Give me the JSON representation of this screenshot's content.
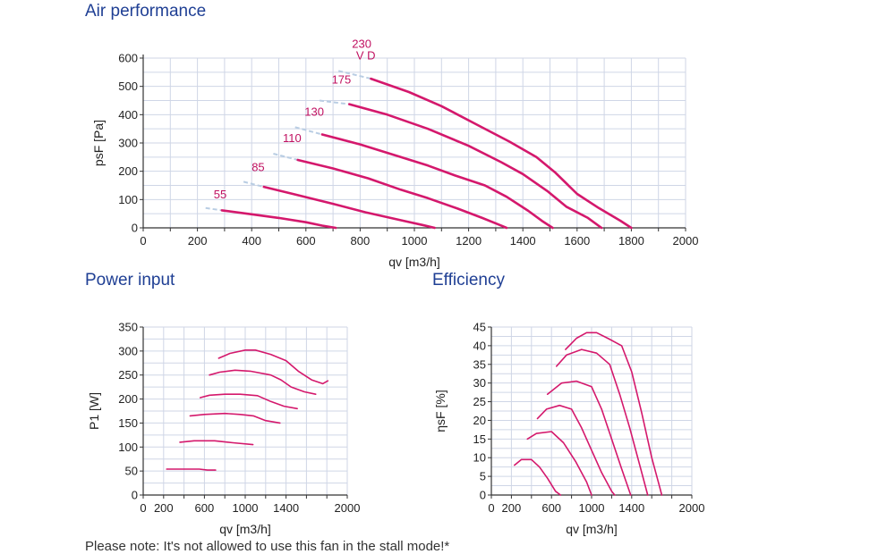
{
  "titles": {
    "air": "Air performance",
    "power": "Power input",
    "efficiency": "Efficiency"
  },
  "footnote": "Please note: It's not allowed to use this fan in the stall mode!*",
  "colors": {
    "curve": "#d4186c",
    "label": "#c01060",
    "title": "#1f3f94",
    "grid": "#cfd6e6",
    "axis": "#333333",
    "stall": "#b9cde3"
  },
  "chart_data": [
    {
      "id": "air",
      "type": "line",
      "xlabel": "qv [m3/h]",
      "ylabel": "psF [Pa]",
      "xlim": [
        0,
        2000
      ],
      "ylim": [
        0,
        600
      ],
      "xticks": [
        0,
        200,
        400,
        600,
        800,
        1000,
        1200,
        1400,
        1600,
        1800,
        2000
      ],
      "yticks": [
        0,
        100,
        200,
        300,
        400,
        500,
        600
      ],
      "xgrid_step": 100,
      "ygrid_step": 50,
      "stall_lines": [
        [
          [
            230,
            70
          ],
          [
            290,
            62
          ]
        ],
        [
          [
            370,
            163
          ],
          [
            445,
            145
          ]
        ],
        [
          [
            480,
            262
          ],
          [
            570,
            240
          ]
        ],
        [
          [
            560,
            356
          ],
          [
            660,
            330
          ]
        ],
        [
          [
            650,
            450
          ],
          [
            760,
            437
          ]
        ],
        [
          [
            720,
            555
          ],
          [
            840,
            527
          ]
        ]
      ],
      "curve_labels": [
        {
          "text": "55",
          "x": 260,
          "y": 105
        },
        {
          "text": "85",
          "x": 400,
          "y": 200
        },
        {
          "text": "110",
          "x": 515,
          "y": 303
        },
        {
          "text": "130",
          "x": 595,
          "y": 396
        },
        {
          "text": "175",
          "x": 695,
          "y": 510
        },
        {
          "text": "230",
          "x": 770,
          "y": 636
        },
        {
          "text": "V D",
          "x": 785,
          "y": 595
        }
      ],
      "series": [
        {
          "name": "55",
          "points": [
            [
              290,
              62
            ],
            [
              400,
              48
            ],
            [
              500,
              35
            ],
            [
              600,
              20
            ],
            [
              660,
              8
            ],
            [
              710,
              0
            ]
          ]
        },
        {
          "name": "85",
          "points": [
            [
              445,
              145
            ],
            [
              560,
              118
            ],
            [
              700,
              85
            ],
            [
              820,
              55
            ],
            [
              960,
              25
            ],
            [
              1030,
              10
            ],
            [
              1075,
              0
            ]
          ]
        },
        {
          "name": "110",
          "points": [
            [
              570,
              240
            ],
            [
              700,
              210
            ],
            [
              830,
              175
            ],
            [
              950,
              135
            ],
            [
              1050,
              105
            ],
            [
              1160,
              68
            ],
            [
              1250,
              35
            ],
            [
              1310,
              12
            ],
            [
              1340,
              0
            ]
          ]
        },
        {
          "name": "130",
          "points": [
            [
              660,
              330
            ],
            [
              800,
              295
            ],
            [
              950,
              250
            ],
            [
              1050,
              220
            ],
            [
              1150,
              185
            ],
            [
              1260,
              150
            ],
            [
              1340,
              110
            ],
            [
              1420,
              60
            ],
            [
              1470,
              25
            ],
            [
              1510,
              0
            ]
          ]
        },
        {
          "name": "175",
          "points": [
            [
              760,
              437
            ],
            [
              900,
              400
            ],
            [
              1050,
              350
            ],
            [
              1200,
              290
            ],
            [
              1320,
              232
            ],
            [
              1400,
              190
            ],
            [
              1490,
              130
            ],
            [
              1560,
              75
            ],
            [
              1640,
              35
            ],
            [
              1690,
              0
            ]
          ]
        },
        {
          "name": "230",
          "points": [
            [
              840,
              527
            ],
            [
              980,
              480
            ],
            [
              1100,
              430
            ],
            [
              1250,
              355
            ],
            [
              1350,
              305
            ],
            [
              1450,
              250
            ],
            [
              1520,
              195
            ],
            [
              1600,
              120
            ],
            [
              1680,
              70
            ],
            [
              1760,
              25
            ],
            [
              1800,
              0
            ]
          ]
        }
      ]
    },
    {
      "id": "power",
      "type": "line",
      "xlabel": "qv [m3/h]",
      "ylabel": "P1 [W]",
      "xlim": [
        0,
        2000
      ],
      "ylim": [
        0,
        350
      ],
      "xticks": [
        0,
        200,
        600,
        1000,
        1400,
        2000
      ],
      "yticks": [
        0,
        50,
        100,
        150,
        200,
        250,
        300,
        350
      ],
      "xgrid_step": 200,
      "ygrid_step": 25,
      "series": [
        {
          "name": "55",
          "points": [
            [
              230,
              54
            ],
            [
              400,
              54
            ],
            [
              550,
              54
            ],
            [
              630,
              52
            ],
            [
              710,
              52
            ]
          ]
        },
        {
          "name": "85",
          "points": [
            [
              360,
              110
            ],
            [
              500,
              113
            ],
            [
              700,
              113
            ],
            [
              880,
              109
            ],
            [
              1075,
              105
            ]
          ]
        },
        {
          "name": "110",
          "points": [
            [
              460,
              165
            ],
            [
              600,
              168
            ],
            [
              800,
              170
            ],
            [
              950,
              168
            ],
            [
              1080,
              165
            ],
            [
              1200,
              155
            ],
            [
              1340,
              150
            ]
          ]
        },
        {
          "name": "130",
          "points": [
            [
              560,
              203
            ],
            [
              650,
              208
            ],
            [
              800,
              210
            ],
            [
              950,
              210
            ],
            [
              1120,
              207
            ],
            [
              1250,
              195
            ],
            [
              1380,
              185
            ],
            [
              1510,
              180
            ]
          ]
        },
        {
          "name": "175",
          "points": [
            [
              650,
              250
            ],
            [
              750,
              256
            ],
            [
              900,
              260
            ],
            [
              1050,
              258
            ],
            [
              1250,
              250
            ],
            [
              1350,
              240
            ],
            [
              1450,
              225
            ],
            [
              1580,
              215
            ],
            [
              1690,
              210
            ]
          ]
        },
        {
          "name": "230",
          "points": [
            [
              740,
              285
            ],
            [
              850,
              295
            ],
            [
              1000,
              302
            ],
            [
              1100,
              302
            ],
            [
              1250,
              293
            ],
            [
              1400,
              280
            ],
            [
              1520,
              258
            ],
            [
              1650,
              240
            ],
            [
              1760,
              232
            ],
            [
              1810,
              238
            ]
          ]
        }
      ]
    },
    {
      "id": "efficiency",
      "type": "line",
      "xlabel": "qv [m3/h]",
      "ylabel": "ηsF [%]",
      "xlim": [
        0,
        2000
      ],
      "ylim": [
        0,
        45
      ],
      "xticks": [
        0,
        200,
        600,
        1000,
        1400,
        2000
      ],
      "yticks": [
        0,
        5,
        10,
        15,
        20,
        25,
        30,
        35,
        40,
        45
      ],
      "xgrid_step": 200,
      "ygrid_step": 2.5,
      "series": [
        {
          "name": "55",
          "points": [
            [
              230,
              8
            ],
            [
              300,
              9.5
            ],
            [
              400,
              9.5
            ],
            [
              480,
              7.5
            ],
            [
              560,
              4.5
            ],
            [
              640,
              1
            ],
            [
              690,
              0
            ]
          ]
        },
        {
          "name": "85",
          "points": [
            [
              360,
              15
            ],
            [
              450,
              16.5
            ],
            [
              600,
              17
            ],
            [
              720,
              14
            ],
            [
              840,
              9
            ],
            [
              950,
              3.5
            ],
            [
              1000,
              0
            ]
          ]
        },
        {
          "name": "110",
          "points": [
            [
              460,
              20.5
            ],
            [
              550,
              23
            ],
            [
              680,
              24
            ],
            [
              800,
              23
            ],
            [
              900,
              18
            ],
            [
              1000,
              12
            ],
            [
              1100,
              6
            ],
            [
              1200,
              1
            ],
            [
              1230,
              0
            ]
          ]
        },
        {
          "name": "130",
          "points": [
            [
              560,
              27
            ],
            [
              700,
              30
            ],
            [
              850,
              30.5
            ],
            [
              1000,
              29
            ],
            [
              1100,
              23
            ],
            [
              1200,
              15
            ],
            [
              1300,
              7
            ],
            [
              1390,
              0
            ]
          ]
        },
        {
          "name": "175",
          "points": [
            [
              650,
              34.5
            ],
            [
              750,
              37.5
            ],
            [
              900,
              39
            ],
            [
              1050,
              38
            ],
            [
              1180,
              35
            ],
            [
              1280,
              27
            ],
            [
              1380,
              18
            ],
            [
              1480,
              8
            ],
            [
              1560,
              0
            ]
          ]
        },
        {
          "name": "230",
          "points": [
            [
              740,
              39
            ],
            [
              850,
              42
            ],
            [
              950,
              43.5
            ],
            [
              1050,
              43.5
            ],
            [
              1160,
              42
            ],
            [
              1300,
              40
            ],
            [
              1400,
              33
            ],
            [
              1500,
              22
            ],
            [
              1600,
              10
            ],
            [
              1680,
              2
            ],
            [
              1700,
              0
            ]
          ]
        }
      ]
    }
  ]
}
